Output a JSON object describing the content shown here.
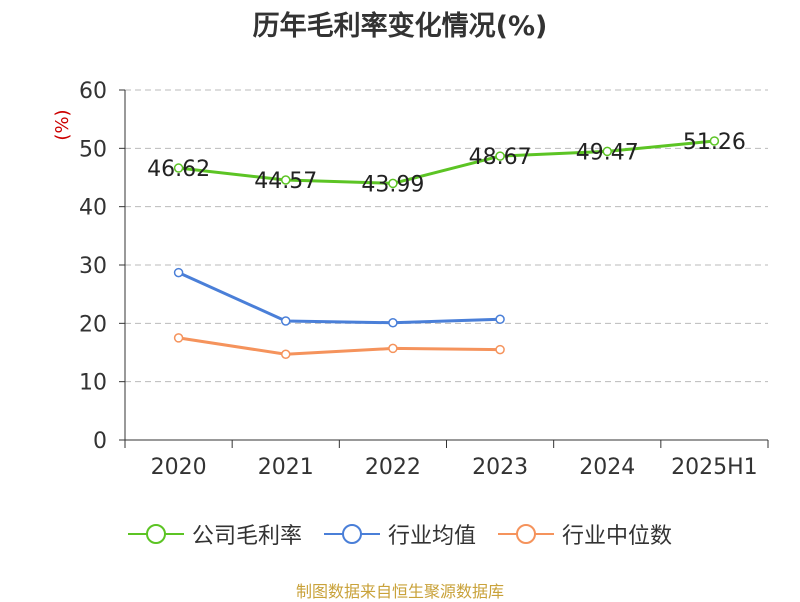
{
  "title": "历年毛利率变化情况(%)",
  "source_text": "制图数据来自恒生聚源数据库",
  "colors": {
    "title": "#333333",
    "axis": "#333333",
    "grid": "#bbbbbb",
    "ylabel": "#cc0000",
    "source": "#c9a23a"
  },
  "chart_data": {
    "type": "line",
    "title": "历年毛利率变化情况(%)",
    "xlabel": "",
    "ylabel": "(%)",
    "categories": [
      "2020",
      "2021",
      "2022",
      "2023",
      "2024",
      "2025H1"
    ],
    "ylim": [
      0,
      60
    ],
    "yticks": [
      0,
      10,
      20,
      30,
      40,
      50,
      60
    ],
    "grid": true,
    "legend_position": "bottom",
    "series": [
      {
        "name": "公司毛利率",
        "color": "#5cc424",
        "values": [
          46.62,
          44.57,
          43.99,
          48.67,
          49.47,
          51.26
        ],
        "labels": [
          "46.62",
          "44.57",
          "43.99",
          "48.67",
          "49.47",
          "51.26"
        ]
      },
      {
        "name": "行业均值",
        "color": "#4a7fd8",
        "values": [
          28.7,
          20.4,
          20.1,
          20.7,
          null,
          null
        ]
      },
      {
        "name": "行业中位数",
        "color": "#f5935c",
        "values": [
          17.5,
          14.7,
          15.7,
          15.5,
          null,
          null
        ]
      }
    ]
  }
}
